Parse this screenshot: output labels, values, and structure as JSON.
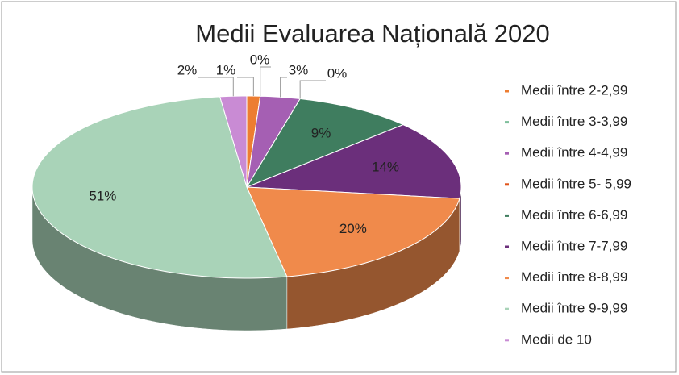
{
  "chart_data": {
    "type": "pie3d",
    "title": "Medii Evaluarea Națională 2020",
    "categories": [
      "Medii între 2-2,99",
      "Medii între 3-3,99",
      "Medii între 4-4,99",
      "Medii între 5- 5,99",
      "Medii între 6-6,99",
      "Medii între 7-7,99",
      "Medii între 8-8,99",
      "Medii între 9-9,99",
      "Medii de 10"
    ],
    "values": [
      1,
      0,
      3,
      0,
      9,
      14,
      20,
      51,
      2
    ],
    "value_labels": [
      "1%",
      "0%",
      "3%",
      "0%",
      "9%",
      "14%",
      "20%",
      "51%",
      "2%"
    ],
    "colors": [
      "#ed7d31",
      "#7fbf9c",
      "#a55fb3",
      "#e0541a",
      "#3f7d5f",
      "#6b2f7b",
      "#f08a4b",
      "#a9d3b8",
      "#c98bd4"
    ],
    "legend": "right"
  }
}
